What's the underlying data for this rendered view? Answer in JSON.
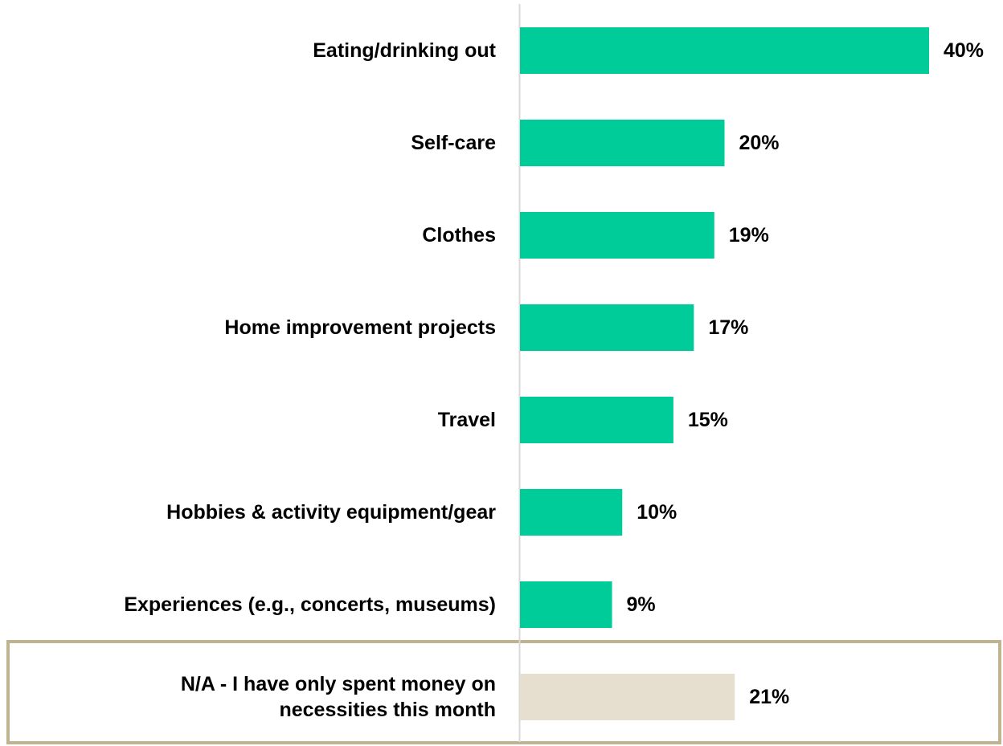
{
  "chart_data": {
    "type": "bar",
    "orientation": "horizontal",
    "categories": [
      "Eating/drinking out",
      "Self-care",
      "Clothes",
      "Home improvement projects",
      "Travel",
      "Hobbies & activity equipment/gear",
      "Experiences (e.g., concerts, museums)",
      "N/A - I have only spent money on necessities this month"
    ],
    "category_lines": [
      [
        "Eating/drinking out"
      ],
      [
        "Self-care"
      ],
      [
        "Clothes"
      ],
      [
        "Home improvement projects"
      ],
      [
        "Travel"
      ],
      [
        "Hobbies & activity equipment/gear"
      ],
      [
        "Experiences (e.g., concerts, museums)"
      ],
      [
        "N/A - I have only spent money on",
        "necessities this month"
      ]
    ],
    "values": [
      40,
      20,
      19,
      17,
      15,
      10,
      9,
      21
    ],
    "value_labels": [
      "40%",
      "20%",
      "19%",
      "17%",
      "15%",
      "10%",
      "9%",
      "21%"
    ],
    "unit": "%",
    "highlighted_category": "N/A - I have only spent money on necessities this month",
    "title": "",
    "xlabel": "",
    "ylabel": "",
    "xlim": [
      0,
      40
    ],
    "grid": false,
    "legend": "none",
    "colors": {
      "bar": "#00CC99",
      "highlight_bar": "#E6DFD0",
      "highlight_box_border": "#BFB48F",
      "axis_line": "#D9D9D9",
      "text": "#000000"
    }
  }
}
